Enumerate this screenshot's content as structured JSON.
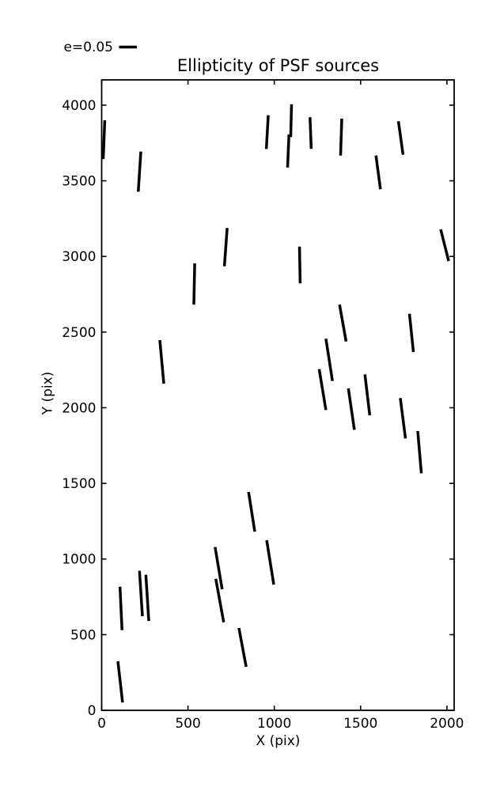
{
  "chart_data": {
    "type": "quiver",
    "title": "Ellipticity of PSF sources",
    "xlabel": "X (pix)",
    "ylabel": "Y (pix)",
    "xlim": [
      0,
      2042
    ],
    "ylim": [
      0,
      4167
    ],
    "x_ticks": [
      0,
      500,
      1000,
      1500,
      2000
    ],
    "y_ticks": [
      0,
      500,
      1000,
      1500,
      2000,
      2500,
      3000,
      3500,
      4000
    ],
    "grid": false,
    "legend": {
      "label": "e=0.05",
      "position": "upper-left-outside"
    },
    "line_color": "#000000",
    "background_color": "#ffffff",
    "segments": [
      {
        "x1": 18,
        "y1": 3900,
        "x2": 9,
        "y2": 3644
      },
      {
        "x1": 227,
        "y1": 3693,
        "x2": 212,
        "y2": 3428
      },
      {
        "x1": 965,
        "y1": 3933,
        "x2": 954,
        "y2": 3710
      },
      {
        "x1": 727,
        "y1": 3188,
        "x2": 711,
        "y2": 2935
      },
      {
        "x1": 539,
        "y1": 2954,
        "x2": 534,
        "y2": 2682
      },
      {
        "x1": 1100,
        "y1": 4006,
        "x2": 1095,
        "y2": 3789
      },
      {
        "x1": 1085,
        "y1": 3806,
        "x2": 1077,
        "y2": 3588
      },
      {
        "x1": 1207,
        "y1": 3920,
        "x2": 1214,
        "y2": 3711
      },
      {
        "x1": 1391,
        "y1": 3911,
        "x2": 1384,
        "y2": 3667
      },
      {
        "x1": 1719,
        "y1": 3894,
        "x2": 1746,
        "y2": 3672
      },
      {
        "x1": 1589,
        "y1": 3667,
        "x2": 1615,
        "y2": 3444
      },
      {
        "x1": 1146,
        "y1": 3065,
        "x2": 1150,
        "y2": 2822
      },
      {
        "x1": 1964,
        "y1": 3179,
        "x2": 2010,
        "y2": 2970
      },
      {
        "x1": 337,
        "y1": 2447,
        "x2": 360,
        "y2": 2159
      },
      {
        "x1": 1378,
        "y1": 2682,
        "x2": 1416,
        "y2": 2438
      },
      {
        "x1": 1299,
        "y1": 2456,
        "x2": 1337,
        "y2": 2177
      },
      {
        "x1": 1260,
        "y1": 2255,
        "x2": 1299,
        "y2": 1985
      },
      {
        "x1": 1429,
        "y1": 2128,
        "x2": 1464,
        "y2": 1854
      },
      {
        "x1": 1525,
        "y1": 2220,
        "x2": 1553,
        "y2": 1950
      },
      {
        "x1": 1783,
        "y1": 2621,
        "x2": 1806,
        "y2": 2368
      },
      {
        "x1": 1730,
        "y1": 2064,
        "x2": 1760,
        "y2": 1797
      },
      {
        "x1": 1831,
        "y1": 1846,
        "x2": 1852,
        "y2": 1567
      },
      {
        "x1": 106,
        "y1": 817,
        "x2": 118,
        "y2": 530
      },
      {
        "x1": 219,
        "y1": 922,
        "x2": 236,
        "y2": 622
      },
      {
        "x1": 256,
        "y1": 896,
        "x2": 273,
        "y2": 591
      },
      {
        "x1": 851,
        "y1": 1443,
        "x2": 887,
        "y2": 1181
      },
      {
        "x1": 657,
        "y1": 1079,
        "x2": 698,
        "y2": 800
      },
      {
        "x1": 661,
        "y1": 869,
        "x2": 707,
        "y2": 582
      },
      {
        "x1": 956,
        "y1": 1124,
        "x2": 997,
        "y2": 831
      },
      {
        "x1": 795,
        "y1": 544,
        "x2": 837,
        "y2": 288
      },
      {
        "x1": 94,
        "y1": 324,
        "x2": 121,
        "y2": 52
      }
    ]
  }
}
